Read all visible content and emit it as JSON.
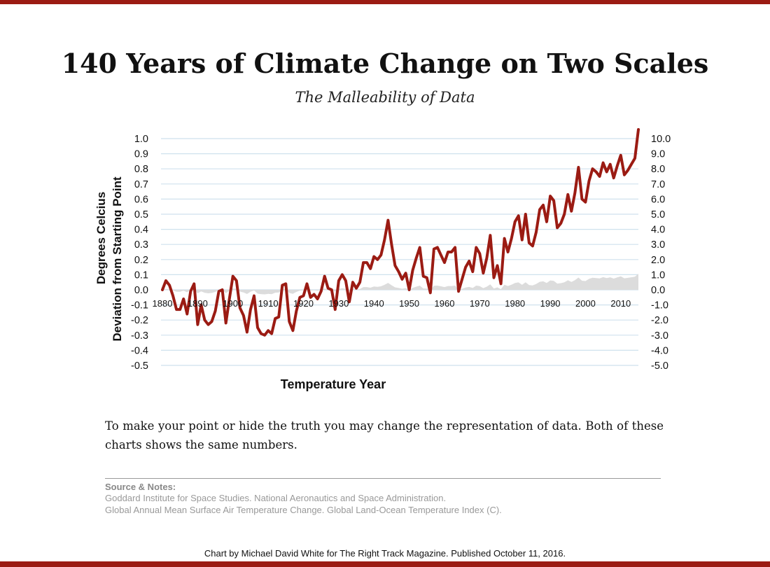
{
  "header": {
    "title": "140 Years of Climate Change on Two Scales",
    "subtitle": "The Malleability of Data"
  },
  "colors": {
    "accent": "#9b1b13",
    "area_fill": "#dcdcdc",
    "grid": "#cfe1ee"
  },
  "chart_data": {
    "type": "area",
    "xlabel": "Temperature Year",
    "ylabel_line1": "Degrees Celcius",
    "ylabel_line2": "Deviation from Starting Point",
    "x_ticks": [
      1880,
      1890,
      1900,
      1910,
      1920,
      1930,
      1940,
      1950,
      1960,
      1970,
      1980,
      1990,
      2000,
      2010
    ],
    "xlim": [
      1880,
      2015
    ],
    "ylim_left": [
      -0.5,
      1.0
    ],
    "ylim_right": [
      -5.0,
      10.0
    ],
    "y_ticks_left": [
      "1.0",
      "0.9",
      "0.8",
      "0.7",
      "0.6",
      "0.5",
      "0.4",
      "0.3",
      "0.2",
      "0.1",
      "0.0",
      "-0.1",
      "-0.2",
      "-0.3",
      "-0.4",
      "-0.5"
    ],
    "y_ticks_right": [
      "10.0",
      "9.0",
      "8.0",
      "7.0",
      "6.0",
      "5.0",
      "4.0",
      "3.0",
      "2.0",
      "1.0",
      "0.0",
      "-1.0",
      "-2.0",
      "-3.0",
      "-4.0",
      "-5.0"
    ],
    "grid": true,
    "years": [
      1880,
      1881,
      1882,
      1883,
      1884,
      1885,
      1886,
      1887,
      1888,
      1889,
      1890,
      1891,
      1892,
      1893,
      1894,
      1895,
      1896,
      1897,
      1898,
      1899,
      1900,
      1901,
      1902,
      1903,
      1904,
      1905,
      1906,
      1907,
      1908,
      1909,
      1910,
      1911,
      1912,
      1913,
      1914,
      1915,
      1916,
      1917,
      1918,
      1919,
      1920,
      1921,
      1922,
      1923,
      1924,
      1925,
      1926,
      1927,
      1928,
      1929,
      1930,
      1931,
      1932,
      1933,
      1934,
      1935,
      1936,
      1937,
      1938,
      1939,
      1940,
      1941,
      1942,
      1943,
      1944,
      1945,
      1946,
      1947,
      1948,
      1949,
      1950,
      1951,
      1952,
      1953,
      1954,
      1955,
      1956,
      1957,
      1958,
      1959,
      1960,
      1961,
      1962,
      1963,
      1964,
      1965,
      1966,
      1967,
      1968,
      1969,
      1970,
      1971,
      1972,
      1973,
      1974,
      1975,
      1976,
      1977,
      1978,
      1979,
      1980,
      1981,
      1982,
      1983,
      1984,
      1985,
      1986,
      1987,
      1988,
      1989,
      1990,
      1991,
      1992,
      1993,
      1994,
      1995,
      1996,
      1997,
      1998,
      1999,
      2000,
      2001,
      2002,
      2003,
      2004,
      2005,
      2006,
      2007,
      2008,
      2009,
      2010,
      2011,
      2012,
      2013,
      2014,
      2015
    ],
    "series": [
      {
        "values": [
          0.0,
          0.06,
          0.03,
          -0.04,
          -0.13,
          -0.13,
          -0.06,
          -0.16,
          -0.01,
          0.04,
          -0.23,
          -0.1,
          -0.2,
          -0.23,
          -0.21,
          -0.14,
          -0.01,
          0.0,
          -0.22,
          -0.06,
          0.09,
          0.06,
          -0.12,
          -0.17,
          -0.28,
          -0.13,
          -0.04,
          -0.25,
          -0.29,
          -0.3,
          -0.27,
          -0.29,
          -0.19,
          -0.18,
          0.03,
          0.04,
          -0.21,
          -0.27,
          -0.14,
          -0.05,
          -0.04,
          0.04,
          -0.05,
          -0.03,
          -0.06,
          -0.01,
          0.09,
          0.01,
          0.0,
          -0.13,
          0.06,
          0.1,
          0.06,
          -0.08,
          0.05,
          0.01,
          0.05,
          0.18,
          0.18,
          0.14,
          0.22,
          0.2,
          0.23,
          0.33,
          0.46,
          0.3,
          0.16,
          0.12,
          0.07,
          0.11,
          0.0,
          0.13,
          0.21,
          0.28,
          0.09,
          0.08,
          -0.02,
          0.27,
          0.28,
          0.23,
          0.18,
          0.25,
          0.25,
          0.28,
          -0.01,
          0.07,
          0.15,
          0.19,
          0.12,
          0.28,
          0.24,
          0.11,
          0.21,
          0.36,
          0.08,
          0.16,
          0.04,
          0.34,
          0.25,
          0.34,
          0.45,
          0.49,
          0.33,
          0.5,
          0.31,
          0.29,
          0.38,
          0.53,
          0.56,
          0.45,
          0.62,
          0.59,
          0.41,
          0.44,
          0.5,
          0.63,
          0.52,
          0.64,
          0.81,
          0.6,
          0.58,
          0.72,
          0.8,
          0.78,
          0.75,
          0.84,
          0.78,
          0.83,
          0.74,
          0.82,
          0.89,
          0.76,
          0.79,
          0.83,
          0.87,
          1.06
        ]
      }
    ]
  },
  "notes": {
    "text": "To make your point or hide the truth you may change the representation of data. Both of these charts shows the same numbers.",
    "source_heading": "Source & Notes:",
    "source_line1": "Goddard Institute for Space Studies. National Aeronautics and Space Administration.",
    "source_line2": "Global Annual Mean Surface Air Temperature Change. Global Land-Ocean Temperature Index (C)."
  },
  "footer": {
    "credit": "Chart by Michael David White for The Right Track Magazine. Published October 11, 2016."
  }
}
